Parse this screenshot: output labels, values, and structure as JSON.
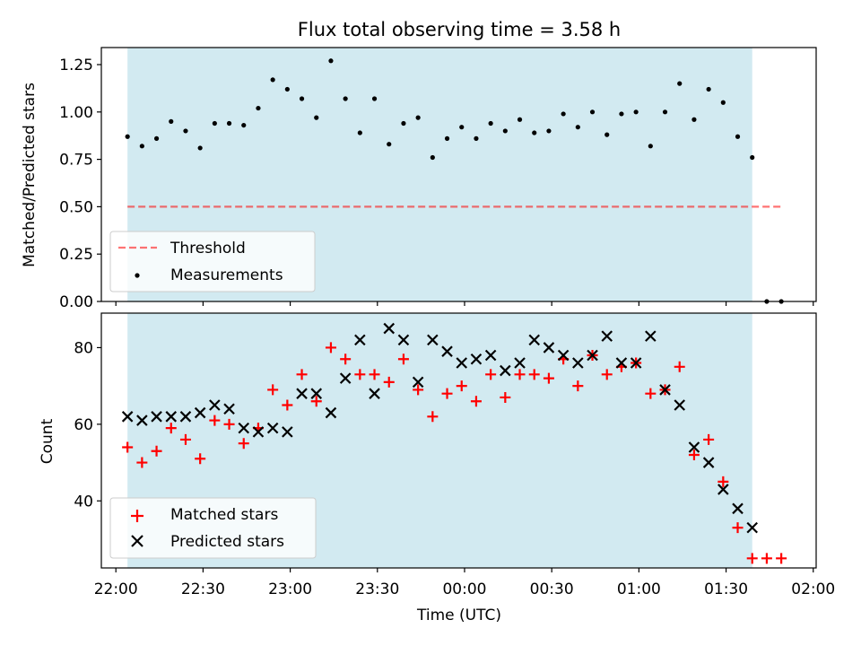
{
  "title": "Flux total observing time = 3.58 h",
  "colors": {
    "shade": "#add8e6",
    "threshold": "#ff0000",
    "measurements": "#000000",
    "matched": "#ff0000",
    "predicted": "#000000"
  },
  "chart_data": [
    {
      "type": "scatter",
      "ylabel": "Matched/Predicted stars",
      "ylim": [
        0,
        1.34
      ],
      "yticks": [
        0.0,
        0.25,
        0.5,
        0.75,
        1.0,
        1.25
      ],
      "ytick_labels": [
        "0.00",
        "0.25",
        "0.50",
        "0.75",
        "1.00",
        "1.25"
      ],
      "legend": {
        "position": "lower-left",
        "entries": [
          "Threshold",
          "Measurements"
        ]
      },
      "shaded_span": {
        "start": "22:04",
        "end": "01:39"
      },
      "threshold": {
        "name": "Threshold",
        "value": 0.5,
        "start": "22:04",
        "end": "01:49",
        "style": "dashed"
      },
      "series": [
        {
          "name": "Measurements",
          "marker": "dot",
          "x": [
            "22:04",
            "22:09",
            "22:14",
            "22:19",
            "22:24",
            "22:29",
            "22:34",
            "22:39",
            "22:44",
            "22:49",
            "22:54",
            "22:59",
            "23:04",
            "23:09",
            "23:14",
            "23:19",
            "23:24",
            "23:29",
            "23:34",
            "23:39",
            "23:44",
            "23:49",
            "23:54",
            "23:59",
            "00:04",
            "00:09",
            "00:14",
            "00:19",
            "00:24",
            "00:29",
            "00:34",
            "00:39",
            "00:44",
            "00:49",
            "00:54",
            "00:59",
            "01:04",
            "01:09",
            "01:14",
            "01:19",
            "01:24",
            "01:29",
            "01:34",
            "01:39",
            "01:44",
            "01:49"
          ],
          "y": [
            0.87,
            0.82,
            0.86,
            0.95,
            0.9,
            0.81,
            0.94,
            0.94,
            0.93,
            1.02,
            1.17,
            1.12,
            1.07,
            0.97,
            1.27,
            1.07,
            0.89,
            1.07,
            0.83,
            0.94,
            0.97,
            0.76,
            0.86,
            0.92,
            0.86,
            0.94,
            0.9,
            0.96,
            0.89,
            0.9,
            0.99,
            0.92,
            1.0,
            0.88,
            0.99,
            1.0,
            0.82,
            1.0,
            1.15,
            0.96,
            1.12,
            1.05,
            0.87,
            0.76,
            0.0,
            0.0
          ]
        }
      ]
    },
    {
      "type": "scatter",
      "xlabel": "Time (UTC)",
      "ylabel": "Count",
      "ylim": [
        22.5,
        89
      ],
      "yticks": [
        40,
        60,
        80
      ],
      "ytick_labels": [
        "40",
        "60",
        "80"
      ],
      "xlim": [
        "21:55",
        "02:01"
      ],
      "xticks": [
        "22:00",
        "22:30",
        "23:00",
        "23:30",
        "00:00",
        "00:30",
        "01:00",
        "01:30",
        "02:00"
      ],
      "xtick_labels": [
        "22:00",
        "22:30",
        "23:00",
        "23:30",
        "00:00",
        "00:30",
        "01:00",
        "01:30",
        "02:00"
      ],
      "legend": {
        "position": "lower-left",
        "entries": [
          "Matched stars",
          "Predicted stars"
        ]
      },
      "shaded_span": {
        "start": "22:04",
        "end": "01:39"
      },
      "series": [
        {
          "name": "Matched stars",
          "marker": "plus",
          "x": [
            "22:04",
            "22:09",
            "22:14",
            "22:19",
            "22:24",
            "22:29",
            "22:34",
            "22:39",
            "22:44",
            "22:49",
            "22:54",
            "22:59",
            "23:04",
            "23:09",
            "23:14",
            "23:19",
            "23:24",
            "23:29",
            "23:34",
            "23:39",
            "23:44",
            "23:49",
            "23:54",
            "23:59",
            "00:04",
            "00:09",
            "00:14",
            "00:19",
            "00:24",
            "00:29",
            "00:34",
            "00:39",
            "00:44",
            "00:49",
            "00:54",
            "00:59",
            "01:04",
            "01:09",
            "01:14",
            "01:19",
            "01:24",
            "01:29",
            "01:34",
            "01:39",
            "01:44",
            "01:49"
          ],
          "y": [
            54,
            50,
            53,
            59,
            56,
            51,
            61,
            60,
            55,
            59,
            69,
            65,
            73,
            66,
            80,
            77,
            73,
            73,
            71,
            77,
            69,
            62,
            68,
            70,
            66,
            73,
            67,
            73,
            73,
            72,
            77,
            70,
            78,
            73,
            75,
            76,
            68,
            69,
            75,
            52,
            56,
            45,
            33,
            25,
            25,
            25
          ]
        },
        {
          "name": "Predicted stars",
          "marker": "x",
          "x": [
            "22:04",
            "22:09",
            "22:14",
            "22:19",
            "22:24",
            "22:29",
            "22:34",
            "22:39",
            "22:44",
            "22:49",
            "22:54",
            "22:59",
            "23:04",
            "23:09",
            "23:14",
            "23:19",
            "23:24",
            "23:29",
            "23:34",
            "23:39",
            "23:44",
            "23:49",
            "23:54",
            "23:59",
            "00:04",
            "00:09",
            "00:14",
            "00:19",
            "00:24",
            "00:29",
            "00:34",
            "00:39",
            "00:44",
            "00:49",
            "00:54",
            "00:59",
            "01:04",
            "01:09",
            "01:14",
            "01:19",
            "01:24",
            "01:29",
            "01:34",
            "01:39"
          ],
          "y": [
            62,
            61,
            62,
            62,
            62,
            63,
            65,
            64,
            59,
            58,
            59,
            58,
            68,
            68,
            63,
            72,
            82,
            68,
            85,
            82,
            71,
            82,
            79,
            76,
            77,
            78,
            74,
            76,
            82,
            80,
            78,
            76,
            78,
            83,
            76,
            76,
            83,
            69,
            65,
            54,
            50,
            43,
            38,
            33
          ]
        }
      ]
    }
  ]
}
